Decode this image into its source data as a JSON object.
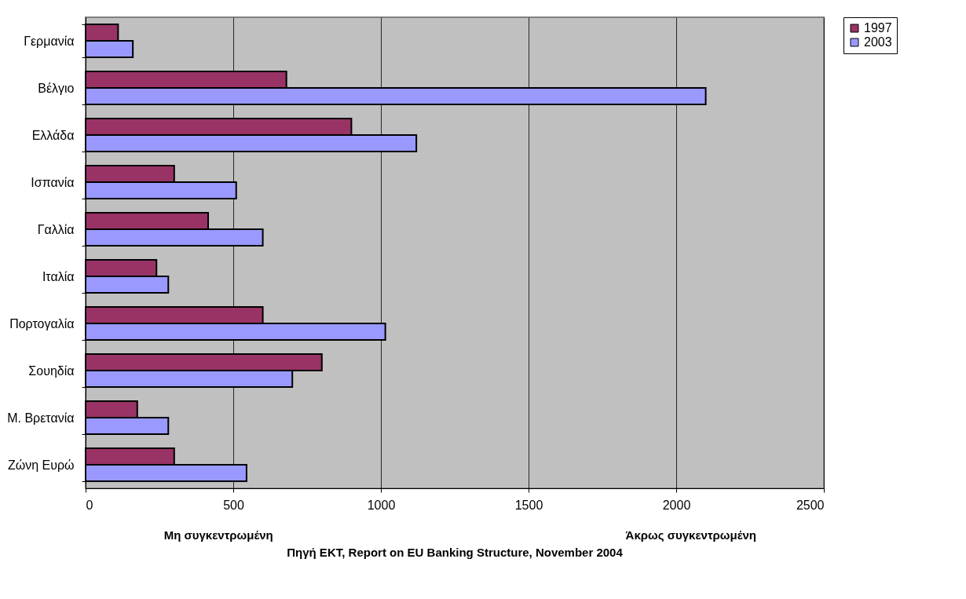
{
  "chart_data": {
    "type": "bar",
    "orientation": "horizontal",
    "categories": [
      "Γερμανία",
      "Βέλγιο",
      "Ελλάδα",
      "Ισπανία",
      "Γαλλία",
      "Ιταλία",
      "Πορτογαλία",
      "Σουηδία",
      "Μ. Βρετανία",
      "Ζώνη Ευρώ"
    ],
    "series": [
      {
        "name": "1997",
        "color": "#993366",
        "values": [
          110,
          680,
          900,
          300,
          415,
          240,
          600,
          800,
          175,
          300
        ]
      },
      {
        "name": "2003",
        "color": "#9999ff",
        "values": [
          160,
          2100,
          1120,
          510,
          600,
          280,
          1015,
          700,
          280,
          545
        ]
      }
    ],
    "xlim": [
      0,
      2500
    ],
    "xticks": [
      0,
      500,
      1000,
      1500,
      2000,
      2500
    ],
    "grid": "x",
    "legend": "right",
    "annotations": [
      "Μη συγκεντρωμένη",
      "Άκρως συγκεντρωμένη",
      "Πηγή ΕΚΤ, Report on EU Banking Structure, November 2004"
    ]
  }
}
